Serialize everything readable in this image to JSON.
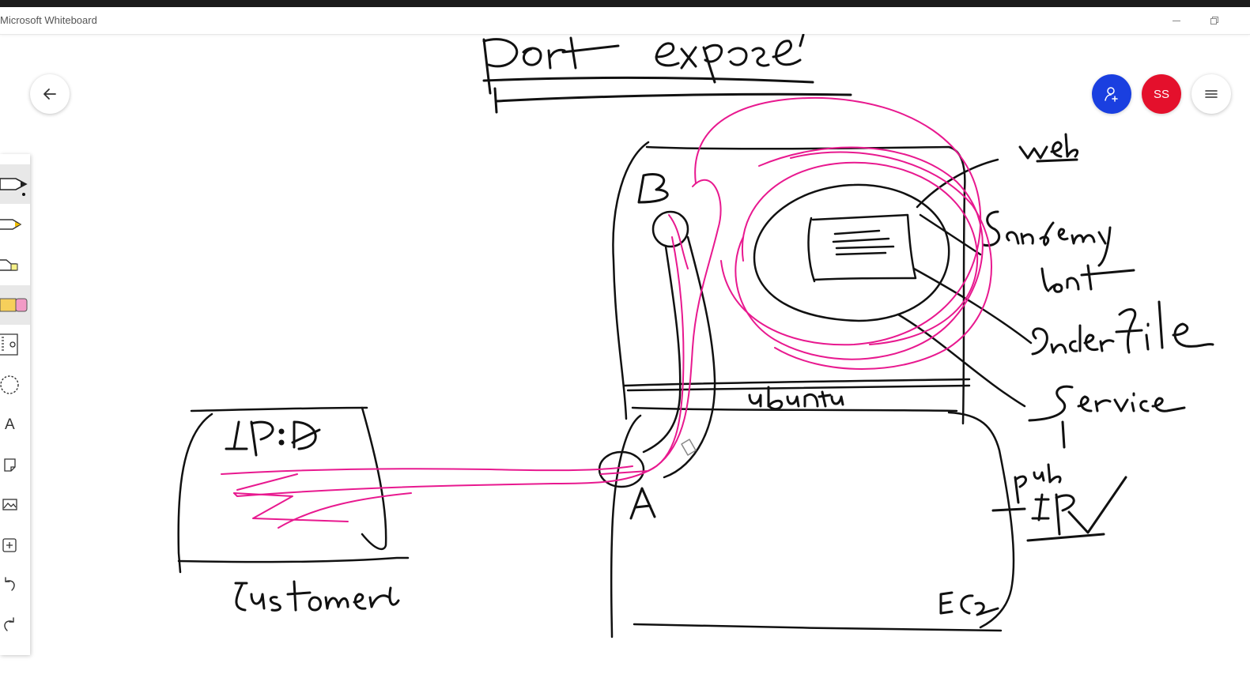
{
  "window": {
    "title": "Microsoft Whiteboard",
    "minimize_icon": "minimize-icon",
    "restore_icon": "restore-icon"
  },
  "header": {
    "back_icon": "arrow-left-icon",
    "invite_icon": "add-person-icon",
    "invite_color": "#1a3fe0",
    "avatar_initials": "SS",
    "avatar_color": "#e4102c",
    "menu_icon": "hamburger-menu-icon"
  },
  "toolbar": {
    "tools": [
      {
        "id": "pen-black",
        "icon": "pen-icon",
        "active": true
      },
      {
        "id": "pen-yellow",
        "icon": "pen-icon",
        "active": false
      },
      {
        "id": "highlighter",
        "icon": "highlighter-icon",
        "active": false
      },
      {
        "id": "eraser",
        "icon": "eraser-icon",
        "active": true
      },
      {
        "id": "ruler",
        "icon": "ruler-icon",
        "active": false
      },
      {
        "id": "lasso",
        "icon": "lasso-icon",
        "active": false
      },
      {
        "id": "text",
        "icon": "text-icon",
        "glyph": "A",
        "active": false
      },
      {
        "id": "note",
        "icon": "note-icon",
        "active": false
      },
      {
        "id": "image",
        "icon": "image-icon",
        "active": false
      },
      {
        "id": "insert",
        "icon": "insert-icon",
        "active": false
      },
      {
        "id": "undo",
        "icon": "undo-icon",
        "active": false
      },
      {
        "id": "redo",
        "icon": "redo-icon",
        "active": false
      }
    ]
  },
  "whiteboard": {
    "ink_colors": {
      "black": "#111111",
      "pink": "#e8198f"
    },
    "handwritten_labels": [
      "Port expose",
      "web",
      "Sandemy",
      "Lont",
      "Dockerfile",
      "Service",
      "ubuntu",
      "B",
      "A",
      "pub",
      "IP",
      "EC2",
      "IP:A",
      "Customer"
    ]
  }
}
